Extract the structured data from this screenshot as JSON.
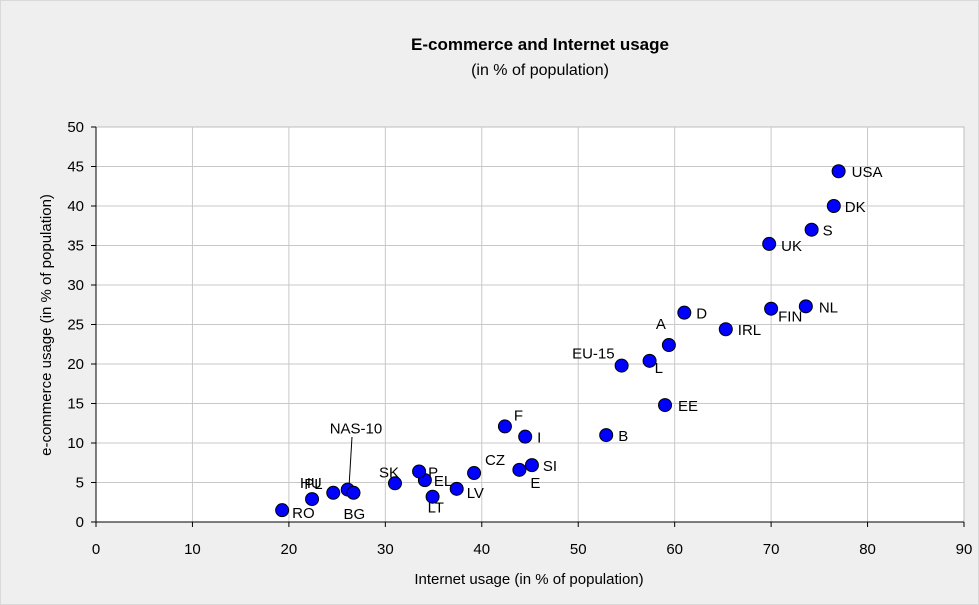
{
  "chart_data": {
    "type": "scatter",
    "title": "E-commerce and Internet usage",
    "subtitle": "(in % of population)",
    "xlabel": "Internet usage (in % of population)",
    "ylabel": "e-commerce usage (in % of population)",
    "xlim": [
      0,
      90
    ],
    "ylim": [
      0,
      50
    ],
    "xticks": [
      "0",
      "10",
      "20",
      "30",
      "40",
      "50",
      "60",
      "70",
      "80",
      "90"
    ],
    "yticks": [
      "0",
      "5",
      "10",
      "15",
      "20",
      "25",
      "30",
      "35",
      "40",
      "45",
      "50"
    ],
    "grid": true,
    "legend": "none",
    "marker_color": "#0000ff",
    "points": [
      {
        "label": "USA",
        "x": 77.0,
        "y": 44.4
      },
      {
        "label": "DK",
        "x": 76.5,
        "y": 40.0
      },
      {
        "label": "S",
        "x": 74.2,
        "y": 37.0
      },
      {
        "label": "UK",
        "x": 69.8,
        "y": 35.2
      },
      {
        "label": "NL",
        "x": 73.6,
        "y": 27.3
      },
      {
        "label": "FIN",
        "x": 70.0,
        "y": 27.0
      },
      {
        "label": "D",
        "x": 61.0,
        "y": 26.5
      },
      {
        "label": "IRL",
        "x": 65.3,
        "y": 24.4
      },
      {
        "label": "A",
        "x": 59.4,
        "y": 22.4
      },
      {
        "label": "L",
        "x": 57.4,
        "y": 20.4
      },
      {
        "label": "EU-15",
        "x": 54.5,
        "y": 19.8
      },
      {
        "label": "EE",
        "x": 59.0,
        "y": 14.8
      },
      {
        "label": "B",
        "x": 52.9,
        "y": 11.0
      },
      {
        "label": "F",
        "x": 42.4,
        "y": 12.1
      },
      {
        "label": "I",
        "x": 44.5,
        "y": 10.8
      },
      {
        "label": "SI",
        "x": 45.2,
        "y": 7.2
      },
      {
        "label": "E",
        "x": 43.9,
        "y": 6.6
      },
      {
        "label": "CZ",
        "x": 39.2,
        "y": 6.2
      },
      {
        "label": "LV",
        "x": 37.4,
        "y": 4.2
      },
      {
        "label": "LT",
        "x": 34.9,
        "y": 3.2
      },
      {
        "label": "EL",
        "x": 34.1,
        "y": 5.3
      },
      {
        "label": "P",
        "x": 33.5,
        "y": 6.4
      },
      {
        "label": "SK",
        "x": 31.0,
        "y": 4.9
      },
      {
        "label": "NAS-10",
        "x": 26.1,
        "y": 4.1
      },
      {
        "label": "BG",
        "x": 26.7,
        "y": 3.7
      },
      {
        "label": "PL",
        "x": 24.6,
        "y": 3.7
      },
      {
        "label": "HU",
        "x": 22.4,
        "y": 2.9
      },
      {
        "label": "RO",
        "x": 19.3,
        "y": 1.5
      }
    ]
  }
}
